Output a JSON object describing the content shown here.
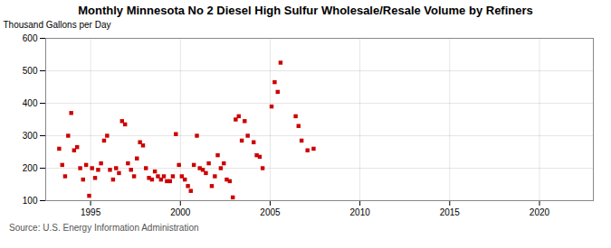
{
  "chart_data": {
    "type": "scatter",
    "title": "Monthly Minnesota No 2 Diesel High Sulfur Wholesale/Resale Volume by Refiners",
    "ylabel": "Thousand Gallons per Day",
    "annotations": [
      "Source: U.S. Energy Information Administration"
    ],
    "x": [
      1993.25,
      1993.42,
      1993.58,
      1993.75,
      1993.92,
      1994.08,
      1994.25,
      1994.42,
      1994.58,
      1994.75,
      1994.92,
      1995.08,
      1995.25,
      1995.42,
      1995.58,
      1995.75,
      1995.92,
      1996.08,
      1996.25,
      1996.42,
      1996.58,
      1996.75,
      1996.92,
      1997.08,
      1997.25,
      1997.42,
      1997.58,
      1997.75,
      1997.92,
      1998.08,
      1998.25,
      1998.42,
      1998.58,
      1998.75,
      1998.92,
      1999.08,
      1999.25,
      1999.42,
      1999.58,
      1999.75,
      1999.92,
      2000.08,
      2000.25,
      2000.42,
      2000.58,
      2000.75,
      2000.92,
      2001.08,
      2001.25,
      2001.42,
      2001.58,
      2001.75,
      2001.92,
      2002.08,
      2002.25,
      2002.42,
      2002.58,
      2002.75,
      2002.92,
      2003.08,
      2003.25,
      2003.42,
      2003.58,
      2003.75,
      2004.08,
      2004.25,
      2004.42,
      2004.58,
      2005.08,
      2005.25,
      2005.42,
      2005.58,
      2006.42,
      2006.58,
      2006.75,
      2007.08,
      2007.42
    ],
    "values": [
      260,
      210,
      175,
      300,
      370,
      255,
      265,
      200,
      165,
      210,
      115,
      200,
      170,
      195,
      215,
      285,
      300,
      195,
      165,
      200,
      185,
      345,
      335,
      215,
      195,
      175,
      230,
      280,
      270,
      200,
      170,
      165,
      190,
      175,
      165,
      175,
      160,
      160,
      175,
      305,
      210,
      175,
      165,
      145,
      130,
      210,
      300,
      200,
      195,
      185,
      215,
      145,
      175,
      240,
      200,
      215,
      165,
      160,
      110,
      350,
      360,
      285,
      345,
      300,
      280,
      240,
      235,
      200,
      390,
      465,
      435,
      525,
      360,
      330,
      285,
      255,
      260
    ],
    "color": "#cc0000",
    "marker": "square",
    "xlim": [
      1992.5,
      2023
    ],
    "ylim": [
      100,
      600
    ],
    "xticks": [
      1995,
      2000,
      2005,
      2010,
      2015,
      2020
    ],
    "yticks": [
      100,
      200,
      300,
      400,
      500,
      600
    ],
    "grid": true
  }
}
